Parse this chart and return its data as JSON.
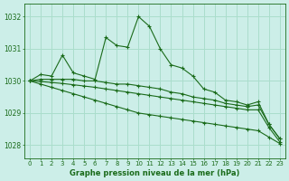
{
  "title": "Graphe pression niveau de la mer (hPa)",
  "bg_color": "#cceee8",
  "grid_color": "#aaddcc",
  "line_color": "#1a6b1a",
  "xlim": [
    -0.5,
    23.5
  ],
  "ylim": [
    1027.6,
    1032.4
  ],
  "yticks": [
    1028,
    1029,
    1030,
    1031,
    1032
  ],
  "xticks": [
    0,
    1,
    2,
    3,
    4,
    5,
    6,
    7,
    8,
    9,
    10,
    11,
    12,
    13,
    14,
    15,
    16,
    17,
    18,
    19,
    20,
    21,
    22,
    23
  ],
  "series": [
    {
      "x": [
        0,
        1,
        2,
        3,
        4,
        5,
        6,
        7,
        8,
        9,
        10,
        11,
        12,
        13,
        14,
        15,
        16,
        17,
        18,
        19,
        20,
        21,
        22,
        23
      ],
      "y": [
        1030.0,
        1030.2,
        1030.15,
        1030.8,
        1030.25,
        1030.15,
        1030.05,
        1031.35,
        1031.1,
        1031.05,
        1032.0,
        1031.7,
        1031.0,
        1030.5,
        1030.4,
        1030.15,
        1029.75,
        1029.65,
        1029.4,
        1029.35,
        1029.25,
        1029.35,
        1028.65,
        1028.2
      ]
    },
    {
      "x": [
        0,
        1,
        2,
        3,
        4,
        5,
        6,
        7,
        8,
        9,
        10,
        11,
        12,
        13,
        14,
        15,
        16,
        17,
        18,
        19,
        20,
        21,
        22,
        23
      ],
      "y": [
        1030.0,
        1030.05,
        1030.05,
        1030.05,
        1030.05,
        1030.0,
        1030.0,
        1029.95,
        1029.9,
        1029.9,
        1029.85,
        1029.8,
        1029.75,
        1029.65,
        1029.6,
        1029.5,
        1029.45,
        1029.4,
        1029.3,
        1029.25,
        1029.2,
        1029.25,
        1028.65,
        1028.2
      ]
    },
    {
      "x": [
        0,
        1,
        2,
        3,
        4,
        5,
        6,
        7,
        8,
        9,
        10,
        11,
        12,
        13,
        14,
        15,
        16,
        17,
        18,
        19,
        20,
        21,
        22,
        23
      ],
      "y": [
        1030.0,
        1029.98,
        1029.95,
        1029.92,
        1029.88,
        1029.84,
        1029.8,
        1029.75,
        1029.7,
        1029.65,
        1029.6,
        1029.55,
        1029.5,
        1029.45,
        1029.4,
        1029.35,
        1029.3,
        1029.25,
        1029.2,
        1029.15,
        1029.1,
        1029.1,
        1028.55,
        1028.1
      ]
    },
    {
      "x": [
        0,
        1,
        2,
        3,
        4,
        5,
        6,
        7,
        8,
        9,
        10,
        11,
        12,
        13,
        14,
        15,
        16,
        17,
        18,
        19,
        20,
        21,
        22,
        23
      ],
      "y": [
        1030.0,
        1029.9,
        1029.8,
        1029.7,
        1029.6,
        1029.5,
        1029.4,
        1029.3,
        1029.2,
        1029.1,
        1029.0,
        1028.95,
        1028.9,
        1028.85,
        1028.8,
        1028.75,
        1028.7,
        1028.65,
        1028.6,
        1028.55,
        1028.5,
        1028.45,
        1028.25,
        1028.05
      ]
    }
  ]
}
